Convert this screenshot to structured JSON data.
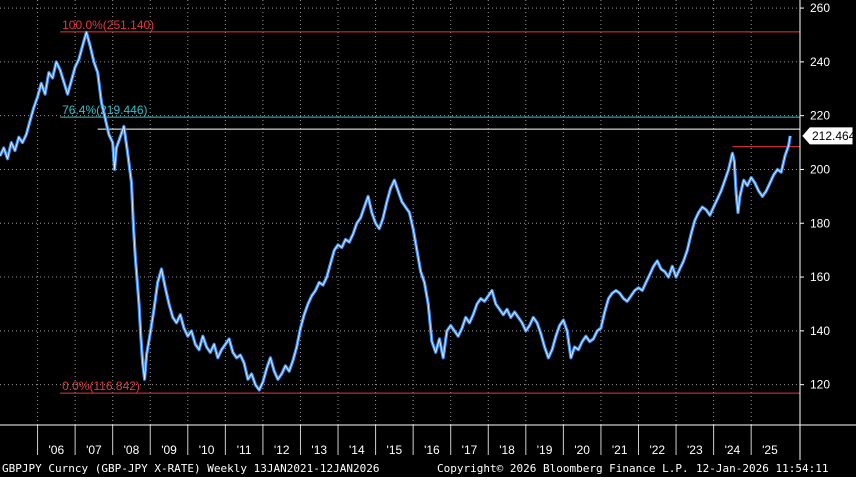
{
  "chart_data": {
    "type": "line",
    "title": "",
    "xlabel": "",
    "ylabel": "",
    "ylim": [
      105,
      263
    ],
    "xlim": [
      2005.0,
      2026.3
    ],
    "grid": true,
    "y_ticks": [
      120,
      140,
      160,
      180,
      200,
      220,
      240,
      260
    ],
    "x_ticks": [
      {
        "x": 2006.5,
        "label": "'06"
      },
      {
        "x": 2007.5,
        "label": "'07"
      },
      {
        "x": 2008.5,
        "label": "'08"
      },
      {
        "x": 2009.5,
        "label": "'09"
      },
      {
        "x": 2010.5,
        "label": "'10"
      },
      {
        "x": 2011.5,
        "label": "'11"
      },
      {
        "x": 2012.5,
        "label": "'12"
      },
      {
        "x": 2013.5,
        "label": "'13"
      },
      {
        "x": 2014.5,
        "label": "'14"
      },
      {
        "x": 2015.5,
        "label": "'15"
      },
      {
        "x": 2016.5,
        "label": "'16"
      },
      {
        "x": 2017.5,
        "label": "'17"
      },
      {
        "x": 2018.5,
        "label": "'18"
      },
      {
        "x": 2019.5,
        "label": "'19"
      },
      {
        "x": 2020.5,
        "label": "'20"
      },
      {
        "x": 2021.5,
        "label": "'21"
      },
      {
        "x": 2022.5,
        "label": "'22"
      },
      {
        "x": 2023.5,
        "label": "'23"
      },
      {
        "x": 2024.5,
        "label": "'24"
      },
      {
        "x": 2025.5,
        "label": "'25"
      }
    ],
    "series": [
      {
        "color": "#3d8ef0",
        "points": [
          [
            2005.0,
            205
          ],
          [
            2005.1,
            208
          ],
          [
            2005.2,
            204
          ],
          [
            2005.3,
            210
          ],
          [
            2005.4,
            207
          ],
          [
            2005.5,
            212
          ],
          [
            2005.6,
            210
          ],
          [
            2005.7,
            213
          ],
          [
            2005.8,
            218
          ],
          [
            2005.9,
            223
          ],
          [
            2006.0,
            227
          ],
          [
            2006.1,
            232
          ],
          [
            2006.2,
            228
          ],
          [
            2006.3,
            236
          ],
          [
            2006.4,
            234
          ],
          [
            2006.5,
            240
          ],
          [
            2006.6,
            237
          ],
          [
            2006.8,
            228
          ],
          [
            2006.9,
            233
          ],
          [
            2007.0,
            238
          ],
          [
            2007.1,
            241
          ],
          [
            2007.2,
            246
          ],
          [
            2007.3,
            251
          ],
          [
            2007.4,
            246
          ],
          [
            2007.5,
            240
          ],
          [
            2007.6,
            236
          ],
          [
            2007.7,
            225
          ],
          [
            2007.8,
            219
          ],
          [
            2007.9,
            213
          ],
          [
            2008.0,
            210
          ],
          [
            2008.05,
            200
          ],
          [
            2008.1,
            208
          ],
          [
            2008.2,
            212
          ],
          [
            2008.3,
            216
          ],
          [
            2008.4,
            206
          ],
          [
            2008.5,
            195
          ],
          [
            2008.55,
            180
          ],
          [
            2008.6,
            168
          ],
          [
            2008.7,
            150
          ],
          [
            2008.75,
            138
          ],
          [
            2008.8,
            128
          ],
          [
            2008.85,
            122
          ],
          [
            2008.9,
            131
          ],
          [
            2009.0,
            139
          ],
          [
            2009.1,
            148
          ],
          [
            2009.2,
            158
          ],
          [
            2009.3,
            163
          ],
          [
            2009.4,
            156
          ],
          [
            2009.5,
            150
          ],
          [
            2009.6,
            145
          ],
          [
            2009.7,
            143
          ],
          [
            2009.8,
            146
          ],
          [
            2009.9,
            141
          ],
          [
            2010.0,
            138
          ],
          [
            2010.1,
            140
          ],
          [
            2010.2,
            135
          ],
          [
            2010.3,
            133
          ],
          [
            2010.4,
            138
          ],
          [
            2010.5,
            134
          ],
          [
            2010.6,
            132
          ],
          [
            2010.7,
            135
          ],
          [
            2010.8,
            130
          ],
          [
            2010.9,
            133
          ],
          [
            2011.0,
            135
          ],
          [
            2011.1,
            137
          ],
          [
            2011.2,
            132
          ],
          [
            2011.3,
            130
          ],
          [
            2011.4,
            131
          ],
          [
            2011.5,
            128
          ],
          [
            2011.6,
            122
          ],
          [
            2011.7,
            124
          ],
          [
            2011.8,
            120
          ],
          [
            2011.9,
            118
          ],
          [
            2012.0,
            121
          ],
          [
            2012.1,
            126
          ],
          [
            2012.2,
            130
          ],
          [
            2012.3,
            125
          ],
          [
            2012.4,
            122
          ],
          [
            2012.5,
            124
          ],
          [
            2012.6,
            127
          ],
          [
            2012.7,
            125
          ],
          [
            2012.8,
            129
          ],
          [
            2012.9,
            134
          ],
          [
            2013.0,
            141
          ],
          [
            2013.1,
            146
          ],
          [
            2013.2,
            150
          ],
          [
            2013.3,
            153
          ],
          [
            2013.4,
            155
          ],
          [
            2013.5,
            158
          ],
          [
            2013.6,
            157
          ],
          [
            2013.7,
            160
          ],
          [
            2013.8,
            165
          ],
          [
            2013.9,
            170
          ],
          [
            2014.0,
            172
          ],
          [
            2014.1,
            171
          ],
          [
            2014.2,
            174
          ],
          [
            2014.3,
            173
          ],
          [
            2014.4,
            176
          ],
          [
            2014.5,
            180
          ],
          [
            2014.6,
            182
          ],
          [
            2014.7,
            186
          ],
          [
            2014.8,
            190
          ],
          [
            2014.9,
            184
          ],
          [
            2015.0,
            180
          ],
          [
            2015.1,
            178
          ],
          [
            2015.2,
            182
          ],
          [
            2015.3,
            188
          ],
          [
            2015.4,
            193
          ],
          [
            2015.5,
            196
          ],
          [
            2015.6,
            192
          ],
          [
            2015.7,
            188
          ],
          [
            2015.8,
            186
          ],
          [
            2015.9,
            184
          ],
          [
            2016.0,
            178
          ],
          [
            2016.1,
            170
          ],
          [
            2016.2,
            162
          ],
          [
            2016.3,
            158
          ],
          [
            2016.4,
            150
          ],
          [
            2016.5,
            136
          ],
          [
            2016.6,
            132
          ],
          [
            2016.7,
            137
          ],
          [
            2016.8,
            130
          ],
          [
            2016.9,
            140
          ],
          [
            2017.0,
            142
          ],
          [
            2017.1,
            140
          ],
          [
            2017.2,
            138
          ],
          [
            2017.3,
            141
          ],
          [
            2017.4,
            145
          ],
          [
            2017.5,
            143
          ],
          [
            2017.6,
            146
          ],
          [
            2017.7,
            150
          ],
          [
            2017.8,
            152
          ],
          [
            2017.9,
            151
          ],
          [
            2018.0,
            153
          ],
          [
            2018.1,
            155
          ],
          [
            2018.2,
            150
          ],
          [
            2018.3,
            148
          ],
          [
            2018.4,
            146
          ],
          [
            2018.5,
            148
          ],
          [
            2018.6,
            145
          ],
          [
            2018.7,
            147
          ],
          [
            2018.8,
            145
          ],
          [
            2018.9,
            143
          ],
          [
            2019.0,
            140
          ],
          [
            2019.1,
            142
          ],
          [
            2019.2,
            145
          ],
          [
            2019.3,
            143
          ],
          [
            2019.4,
            139
          ],
          [
            2019.5,
            134
          ],
          [
            2019.6,
            130
          ],
          [
            2019.7,
            133
          ],
          [
            2019.8,
            138
          ],
          [
            2019.9,
            142
          ],
          [
            2020.0,
            144
          ],
          [
            2020.1,
            140
          ],
          [
            2020.2,
            130
          ],
          [
            2020.3,
            134
          ],
          [
            2020.4,
            133
          ],
          [
            2020.5,
            136
          ],
          [
            2020.6,
            138
          ],
          [
            2020.7,
            136
          ],
          [
            2020.8,
            137
          ],
          [
            2020.9,
            140
          ],
          [
            2021.0,
            141
          ],
          [
            2021.1,
            147
          ],
          [
            2021.2,
            152
          ],
          [
            2021.3,
            154
          ],
          [
            2021.4,
            155
          ],
          [
            2021.5,
            154
          ],
          [
            2021.6,
            152
          ],
          [
            2021.7,
            151
          ],
          [
            2021.8,
            153
          ],
          [
            2021.9,
            155
          ],
          [
            2022.0,
            156
          ],
          [
            2022.1,
            155
          ],
          [
            2022.2,
            158
          ],
          [
            2022.3,
            161
          ],
          [
            2022.4,
            164
          ],
          [
            2022.5,
            166
          ],
          [
            2022.6,
            163
          ],
          [
            2022.7,
            162
          ],
          [
            2022.8,
            160
          ],
          [
            2022.9,
            164
          ],
          [
            2023.0,
            160
          ],
          [
            2023.1,
            163
          ],
          [
            2023.2,
            166
          ],
          [
            2023.3,
            170
          ],
          [
            2023.4,
            176
          ],
          [
            2023.5,
            181
          ],
          [
            2023.6,
            184
          ],
          [
            2023.7,
            186
          ],
          [
            2023.8,
            185
          ],
          [
            2023.9,
            183
          ],
          [
            2024.0,
            186
          ],
          [
            2024.1,
            189
          ],
          [
            2024.2,
            192
          ],
          [
            2024.3,
            196
          ],
          [
            2024.4,
            200
          ],
          [
            2024.5,
            206
          ],
          [
            2024.55,
            203
          ],
          [
            2024.6,
            191
          ],
          [
            2024.65,
            184
          ],
          [
            2024.7,
            190
          ],
          [
            2024.8,
            196
          ],
          [
            2024.9,
            194
          ],
          [
            2025.0,
            197
          ],
          [
            2025.1,
            195
          ],
          [
            2025.2,
            192
          ],
          [
            2025.3,
            190
          ],
          [
            2025.4,
            192
          ],
          [
            2025.5,
            195
          ],
          [
            2025.6,
            198
          ],
          [
            2025.7,
            200
          ],
          [
            2025.8,
            199
          ],
          [
            2025.9,
            205
          ],
          [
            2026.0,
            209
          ],
          [
            2026.04,
            212.464
          ]
        ]
      }
    ],
    "fib_levels": [
      {
        "pct": "100.0%",
        "value": 251.14,
        "value_label": "(251.140)",
        "color": "#e8353a"
      },
      {
        "pct": "76.4%",
        "value": 219.446,
        "value_label": "(219.446)",
        "color": "#35bfc9"
      },
      {
        "pct": "0.0%",
        "value": 116.842,
        "value_label": "(116.842)",
        "color": "#e8353a"
      }
    ],
    "reference_lines": [
      {
        "value": 215.0,
        "color": "#ffffff",
        "x_start": 2007.6
      },
      {
        "value": 208.5,
        "color": "#e8353a",
        "x_start": 2024.5
      }
    ],
    "last_value": 212.464,
    "last_value_label": "212.464"
  },
  "footer": {
    "left": "GBPJPY Curncy (GBP-JPY X-RATE) Weekly 13JAN2021-12JAN2026",
    "middle": "Copyright© 2026 Bloomberg Finance L.P.",
    "right": "12-Jan-2026 11:54:11"
  }
}
